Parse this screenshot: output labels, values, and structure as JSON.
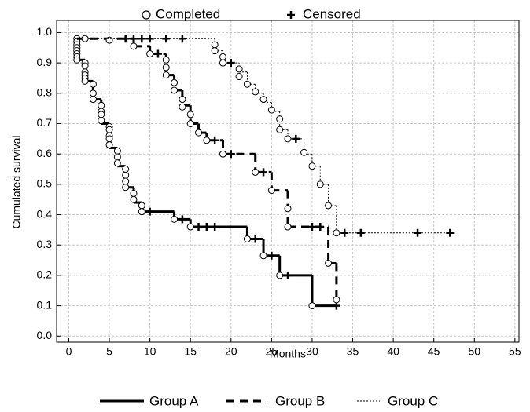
{
  "chart_data": {
    "type": "survival",
    "x_label": "Months",
    "y_label": "Cumulated survival",
    "marker_legend": {
      "completed": "Completed",
      "censored": "Censored"
    },
    "xlim": [
      -1.5,
      55.5
    ],
    "ylim": [
      -0.02,
      1.04
    ],
    "xticks": [
      0,
      5,
      10,
      15,
      20,
      25,
      30,
      35,
      40,
      45,
      50,
      55
    ],
    "yticks": [
      {
        "value": 0,
        "label": "0.0"
      },
      0.1,
      0.2,
      0.3,
      0.4,
      0.5,
      0.6,
      0.7,
      0.8,
      0.9,
      {
        "value": 1,
        "label": "1.0"
      }
    ],
    "grid": true,
    "series": [
      {
        "name": "Group A",
        "color": "#000000",
        "line_style": "solid",
        "x": [
          1,
          2,
          3,
          4,
          5,
          6,
          7,
          8,
          9,
          13,
          15,
          22,
          24,
          26,
          30,
          33
        ],
        "values": [
          0.91,
          0.84,
          0.78,
          0.7,
          0.62,
          0.56,
          0.49,
          0.44,
          0.41,
          0.385,
          0.36,
          0.32,
          0.265,
          0.2,
          0.1,
          0.1
        ],
        "completed_x": [
          1,
          1,
          1,
          1,
          1,
          1,
          1,
          1,
          2,
          2,
          2,
          2,
          2,
          2,
          3,
          3,
          3,
          4,
          4,
          4,
          4,
          5,
          5,
          5,
          5,
          5,
          6,
          6,
          6,
          7,
          7,
          7,
          7,
          8,
          8,
          9,
          9,
          13,
          15,
          22,
          24,
          26,
          30
        ],
        "completed_y": [
          0.98,
          0.97,
          0.96,
          0.95,
          0.94,
          0.93,
          0.92,
          0.91,
          0.9,
          0.89,
          0.87,
          0.86,
          0.85,
          0.84,
          0.83,
          0.8,
          0.78,
          0.76,
          0.74,
          0.73,
          0.71,
          0.69,
          0.68,
          0.66,
          0.65,
          0.63,
          0.61,
          0.59,
          0.57,
          0.55,
          0.53,
          0.51,
          0.49,
          0.47,
          0.45,
          0.43,
          0.41,
          0.385,
          0.36,
          0.32,
          0.265,
          0.2,
          0.1
        ],
        "censored_x": [
          10,
          14,
          16,
          17,
          18,
          23,
          25,
          27,
          33
        ],
        "censored_y": [
          0.41,
          0.385,
          0.36,
          0.36,
          0.36,
          0.32,
          0.265,
          0.2,
          0.1
        ]
      },
      {
        "name": "Group B",
        "color": "#000000",
        "line_style": "dashed",
        "x": [
          1,
          8,
          10,
          12,
          13,
          14,
          15,
          16,
          17,
          19,
          23,
          25,
          27,
          32,
          33
        ],
        "values": [
          0.98,
          0.955,
          0.93,
          0.86,
          0.81,
          0.76,
          0.7,
          0.67,
          0.645,
          0.6,
          0.54,
          0.48,
          0.36,
          0.24,
          0.12
        ],
        "completed_x": [
          5,
          8,
          10,
          12,
          12,
          12,
          13,
          13,
          14,
          14,
          15,
          15,
          16,
          17,
          19,
          23,
          25,
          27,
          27,
          32,
          33
        ],
        "completed_y": [
          0.975,
          0.955,
          0.93,
          0.91,
          0.885,
          0.86,
          0.835,
          0.81,
          0.78,
          0.755,
          0.73,
          0.7,
          0.67,
          0.645,
          0.6,
          0.54,
          0.48,
          0.42,
          0.36,
          0.24,
          0.12
        ],
        "censored_x": [
          7,
          11,
          18,
          20,
          24,
          30,
          31
        ],
        "censored_y": [
          0.98,
          0.93,
          0.645,
          0.6,
          0.54,
          0.36,
          0.36
        ]
      },
      {
        "name": "Group C",
        "color": "#000000",
        "line_style": "dotted",
        "x": [
          2,
          18,
          19,
          21,
          22,
          23,
          24,
          25,
          26,
          27,
          29,
          30,
          31,
          32,
          33,
          47
        ],
        "values": [
          0.98,
          0.94,
          0.9,
          0.87,
          0.83,
          0.8,
          0.77,
          0.74,
          0.68,
          0.65,
          0.6,
          0.56,
          0.5,
          0.43,
          0.34,
          0.34
        ],
        "completed_x": [
          2,
          18,
          18,
          19,
          19,
          21,
          21,
          22,
          23,
          24,
          25,
          26,
          26,
          27,
          29,
          30,
          31,
          32,
          33
        ],
        "completed_y": [
          0.98,
          0.96,
          0.94,
          0.92,
          0.9,
          0.88,
          0.855,
          0.83,
          0.805,
          0.78,
          0.745,
          0.715,
          0.68,
          0.65,
          0.605,
          0.56,
          0.5,
          0.43,
          0.34
        ],
        "censored_x": [
          8,
          9,
          10,
          12,
          14,
          20,
          28,
          34,
          36,
          43,
          47
        ],
        "censored_y": [
          0.98,
          0.98,
          0.98,
          0.98,
          0.98,
          0.9,
          0.65,
          0.34,
          0.34,
          0.34,
          0.34
        ]
      }
    ]
  }
}
